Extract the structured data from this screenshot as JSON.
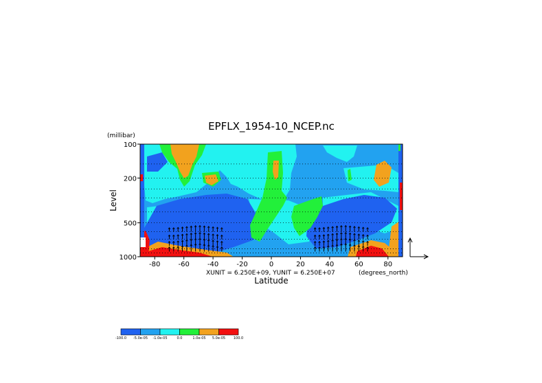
{
  "chart_data": {
    "type": "heatmap",
    "title": "EPFLX_1954-10_NCEP.nc",
    "xlabel": "Latitude",
    "ylabel": "Level",
    "yunit": "(millibar)",
    "xunit": "(degrees_north)",
    "vector_scale_text": "XUNIT = 6.250E+09, YUNIT = 6.250E+07",
    "xlim": [
      -90,
      90
    ],
    "ylim": [
      1000,
      100
    ],
    "yscale": "log",
    "grid": "dotted horizontal at pressure levels",
    "x_ticks": [
      -80,
      -60,
      -40,
      -20,
      0,
      20,
      40,
      60,
      80
    ],
    "x_tick_labels": [
      "-80",
      "-60",
      "-40",
      "-20",
      "0",
      "20",
      "40",
      "60",
      "80"
    ],
    "y_ticks": [
      100,
      200,
      500,
      1000
    ],
    "y_tick_labels": [
      "100",
      "200",
      "500",
      "1000"
    ],
    "grid_levels": [
      150,
      200,
      250,
      300,
      400,
      500,
      600,
      700,
      850,
      925
    ],
    "colorbar": {
      "boundary_labels": [
        "-100.0",
        "-5.0e-05",
        "-1.0e-05",
        "0.0",
        "1.0e-05",
        "5.0e-05",
        "100.0"
      ],
      "colors": [
        "#1f62f0",
        "#22a2f0",
        "#22f2f0",
        "#22f03a",
        "#f2a21e",
        "#f21010"
      ]
    },
    "vector_columns": [
      -70,
      -67,
      -64,
      -61,
      -58,
      -55,
      -52,
      -49,
      -46,
      -43,
      -40,
      -37,
      -34,
      30,
      33,
      36,
      39,
      42,
      45,
      48,
      51,
      54,
      57,
      60,
      63,
      66
    ],
    "reference_arrow": {
      "x": "XUNIT",
      "y": "YUNIT"
    }
  }
}
